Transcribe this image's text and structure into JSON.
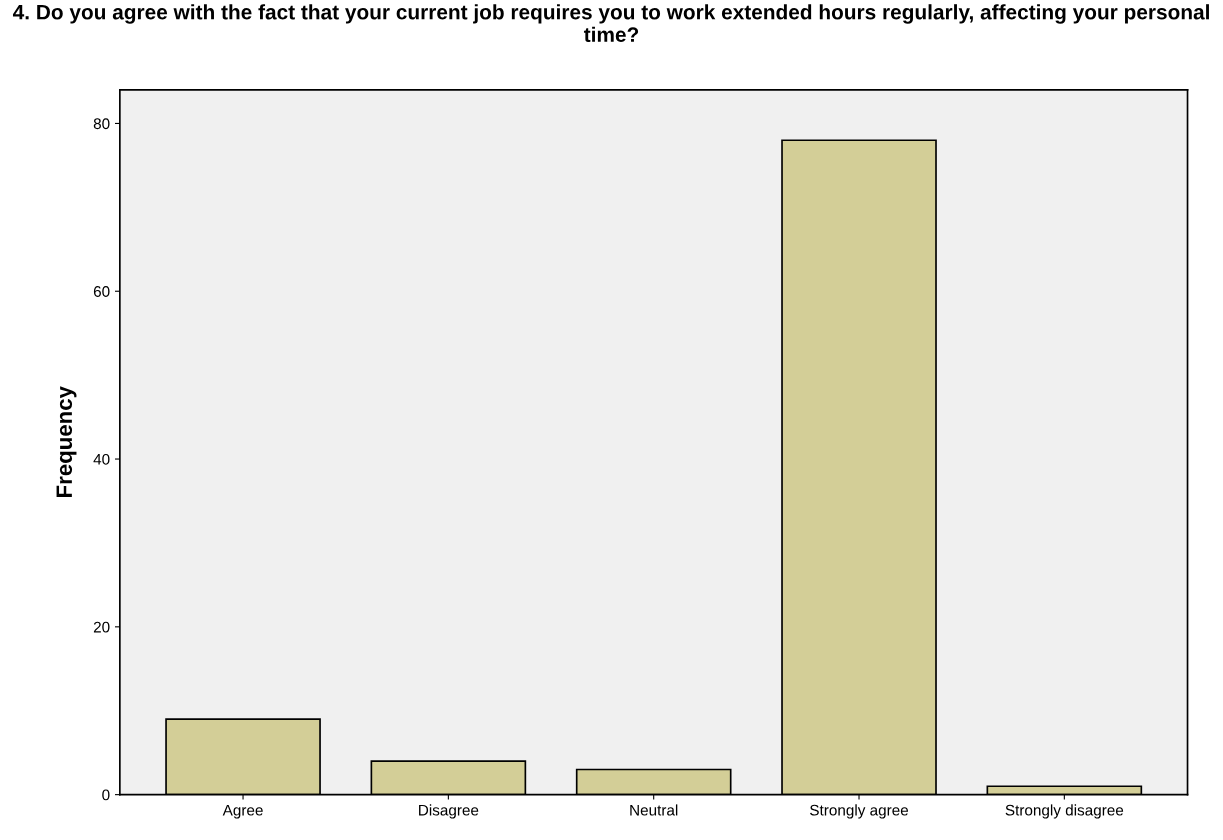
{
  "chart_data": {
    "type": "bar",
    "title": "4. Do you agree with the fact that your current job requires you to work extended hours regularly, affecting your personal time?",
    "ylabel": "Frequency",
    "categories": [
      "Agree",
      "Disagree",
      "Neutral",
      "Strongly agree",
      "Strongly disagree"
    ],
    "values": [
      9,
      4,
      3,
      78,
      1
    ],
    "color": "#d3ce97",
    "ylim": [
      0,
      84
    ],
    "yticks": [
      0,
      20,
      40,
      60,
      80
    ],
    "grid": false,
    "legend": false
  }
}
